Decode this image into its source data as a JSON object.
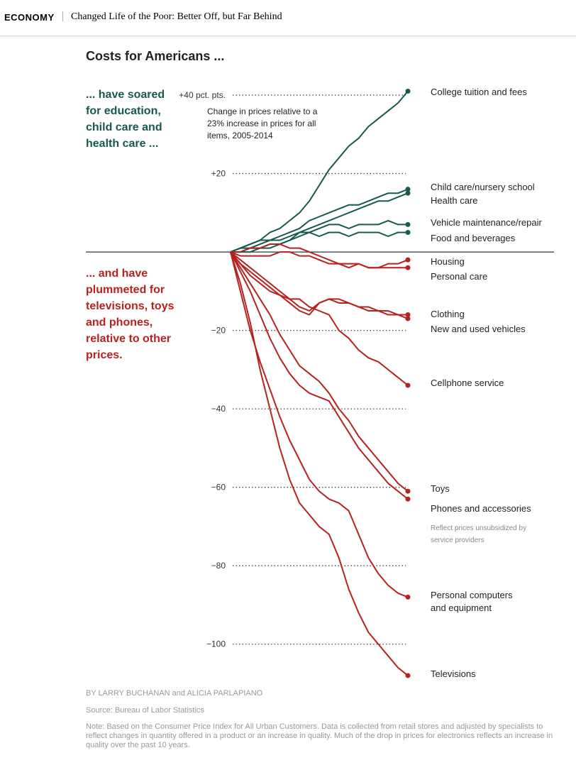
{
  "header": {
    "section": "ECONOMY",
    "headline": "Changed Life of the Poor: Better Off, but Far Behind"
  },
  "chart_data": {
    "type": "line",
    "title": "Costs for Americans ...",
    "subtitle": "Change in prices relative to a 23% increase in prices for all items, 2005-2014",
    "annotations": {
      "up": "... have soared for education, child care and health care ...",
      "down": "... and have plummeted for televisions, toys and phones, relative to other prices.",
      "phones_note": "Reflect prices unsubsidized by service providers"
    },
    "categories": [
      null,
      null,
      null,
      null,
      null,
      null,
      null,
      null,
      null,
      null,
      null,
      null,
      null,
      null,
      null,
      null,
      null,
      null,
      null
    ],
    "ylim": [
      -110,
      42
    ],
    "yticks": [
      {
        "value": 40,
        "label": "+40 pct. pts."
      },
      {
        "value": 20,
        "label": "+20"
      },
      {
        "value": -20,
        "label": "−20"
      },
      {
        "value": -40,
        "label": "−40"
      },
      {
        "value": -60,
        "label": "−60"
      },
      {
        "value": -80,
        "label": "−80"
      },
      {
        "value": -100,
        "label": "−100"
      }
    ],
    "grid": true,
    "series": [
      {
        "name": "College tuition and fees",
        "color": "#17594f",
        "values": [
          0,
          1,
          2,
          3,
          5,
          6,
          8,
          10,
          13,
          17,
          21,
          24,
          27,
          29,
          32,
          34,
          36,
          38,
          41
        ]
      },
      {
        "name": "Child care/nursery school",
        "color": "#17594f",
        "values": [
          0,
          1,
          2,
          3,
          3,
          4,
          5,
          6,
          8,
          9,
          10,
          11,
          12,
          12,
          13,
          14,
          15,
          15,
          16
        ]
      },
      {
        "name": "Health care",
        "color": "#17594f",
        "values": [
          0,
          1,
          1,
          2,
          3,
          3,
          4,
          5,
          6,
          7,
          8,
          9,
          10,
          11,
          12,
          13,
          13,
          14,
          15
        ]
      },
      {
        "name": "Vehicle maintenance/repair",
        "color": "#17594f",
        "values": [
          0,
          0,
          1,
          1,
          2,
          2,
          3,
          4,
          5,
          6,
          7,
          7,
          6,
          7,
          7,
          7,
          8,
          7,
          7
        ]
      },
      {
        "name": "Food and beverages",
        "color": "#17594f",
        "values": [
          0,
          0,
          0,
          1,
          1,
          2,
          3,
          5,
          5,
          4,
          5,
          5,
          4,
          5,
          5,
          5,
          4,
          5,
          5
        ]
      },
      {
        "name": "Housing",
        "color": "#b5221f",
        "values": [
          0,
          0,
          1,
          1,
          2,
          2,
          1,
          1,
          0,
          -1,
          -2,
          -3,
          -3,
          -3,
          -4,
          -4,
          -3,
          -3,
          -2
        ]
      },
      {
        "name": "Personal care",
        "color": "#b5221f",
        "values": [
          0,
          -1,
          -1,
          -1,
          -1,
          0,
          0,
          -1,
          -1,
          -2,
          -3,
          -3,
          -4,
          -3,
          -4,
          -4,
          -4,
          -4,
          -4
        ]
      },
      {
        "name": "Clothing",
        "color": "#b5221f",
        "values": [
          0,
          -3,
          -5,
          -7,
          -9,
          -11,
          -13,
          -15,
          -16,
          -13,
          -12,
          -12,
          -13,
          -14,
          -14,
          -15,
          -15,
          -16,
          -16
        ]
      },
      {
        "name": "New and used vehicles",
        "color": "#b5221f",
        "values": [
          0,
          -2,
          -4,
          -6,
          -8,
          -10,
          -12,
          -14,
          -15,
          -13,
          -12,
          -13,
          -13,
          -14,
          -15,
          -15,
          -16,
          -16,
          -17
        ]
      },
      {
        "name": "Cellphone service",
        "color": "#b5221f",
        "values": [
          0,
          -3,
          -6,
          -8,
          -10,
          -11,
          -12,
          -12,
          -14,
          -15,
          -16,
          -20,
          -22,
          -25,
          -27,
          -28,
          -30,
          -32,
          -34
        ]
      },
      {
        "name": "Toys",
        "color": "#b5221f",
        "values": [
          0,
          -4,
          -8,
          -12,
          -16,
          -21,
          -25,
          -29,
          -31,
          -33,
          -36,
          -40,
          -43,
          -47,
          -50,
          -53,
          -56,
          -59,
          -61
        ]
      },
      {
        "name": "Phones and accessories",
        "color": "#b5221f",
        "values": [
          0,
          -5,
          -10,
          -16,
          -22,
          -27,
          -31,
          -34,
          -36,
          -37,
          -38,
          -42,
          -46,
          -50,
          -53,
          -56,
          -59,
          -61,
          -63
        ]
      },
      {
        "name": "Personal computers and equipment",
        "color": "#b5221f",
        "values": [
          0,
          -10,
          -20,
          -28,
          -35,
          -42,
          -48,
          -53,
          -58,
          -61,
          -63,
          -64,
          -66,
          -72,
          -78,
          -82,
          -85,
          -87,
          -88
        ]
      },
      {
        "name": "Televisions",
        "color": "#b5221f",
        "values": [
          0,
          -8,
          -18,
          -30,
          -40,
          -50,
          -58,
          -64,
          -67,
          -70,
          -72,
          -78,
          -86,
          -92,
          -97,
          -100,
          -103,
          -106,
          -108
        ]
      }
    ]
  },
  "footer": {
    "byline": "BY LARRY BUCHANAN and ALICIA PARLAPIANO",
    "source": "Source: Bureau of Labor Statistics",
    "note": "Note: Based on the Consumer Price Index for All Urban Customers. Data is collected from retail stores and adjusted by specialists to reflect changes in quantity offered in a product or an increase in quality. Much of the drop in prices for electronics reflects an increase in quality over the past 10 years."
  }
}
